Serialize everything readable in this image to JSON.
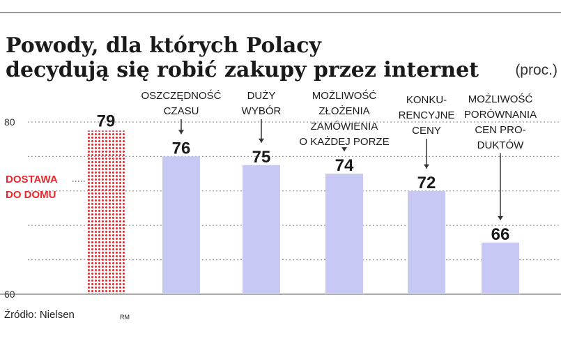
{
  "chart_data": {
    "type": "bar",
    "title_line1": "Powody, dla których Polacy",
    "title_line2": "decydują się robić zakupy przez internet",
    "unit": "(proc.)",
    "ylim": [
      60,
      80
    ],
    "yticks": [
      "80",
      "60"
    ],
    "grid": true,
    "categories": [
      [
        "DOSTAWA",
        "DO DOMU"
      ],
      [
        "OSZCZĘDNOŚĆ",
        "CZASU"
      ],
      [
        "DUŻY",
        "WYBÓR"
      ],
      [
        "MOŻLIWOŚĆ",
        "ZŁOŻENIA",
        "ZAMÓWIENIA",
        "O KAŻDEJ PORZE"
      ],
      [
        "KONKU-",
        "RENCYJNE",
        "CENY"
      ],
      [
        "MOŻLIWOŚĆ",
        "PORÓWNANIA",
        "CEN PRO-",
        "DUKTÓW"
      ]
    ],
    "values": [
      79,
      76,
      75,
      74,
      72,
      66
    ],
    "value_labels": [
      "79",
      "76",
      "75",
      "74",
      "72",
      "66"
    ],
    "colors": {
      "highlight": "#e8262b",
      "bar": "#c8c8f4",
      "grid": "#9a9a9a",
      "text": "#1a1a1a"
    }
  },
  "source": "Źródło: Nielsen",
  "author": "RM"
}
